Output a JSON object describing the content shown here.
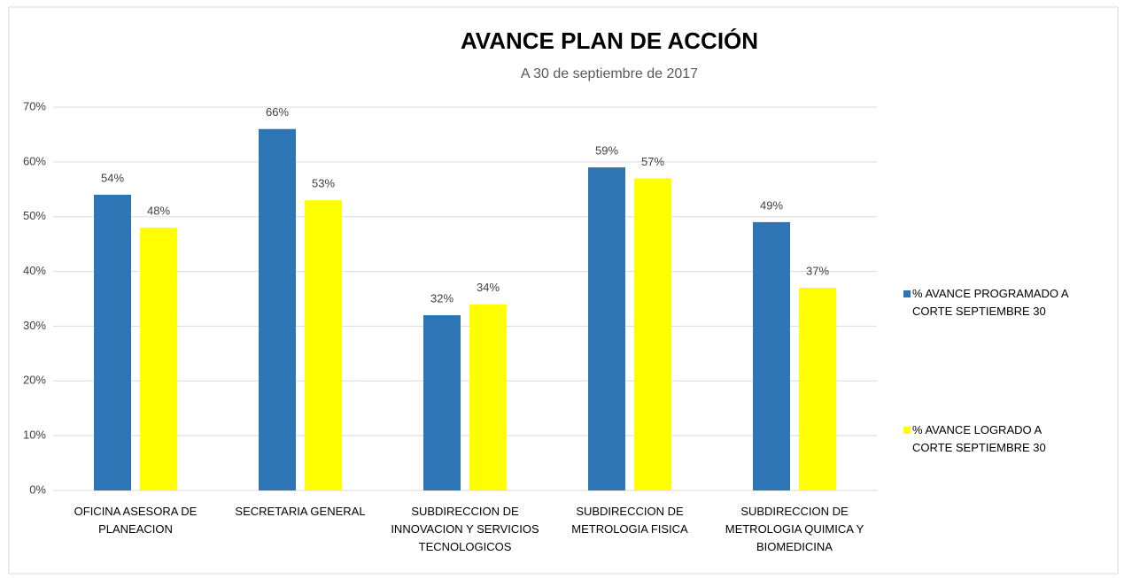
{
  "chart_data": {
    "type": "bar",
    "title": "AVANCE PLAN DE ACCIÓN",
    "subtitle": "A 30 de septiembre de 2017",
    "categories": [
      "OFICINA ASESORA DE PLANEACION",
      "SECRETARIA GENERAL",
      "SUBDIRECCION DE INNOVACION Y SERVICIOS TECNOLOGICOS",
      "SUBDIRECCION DE METROLOGIA FISICA",
      "SUBDIRECCION DE METROLOGIA QUIMICA Y BIOMEDICINA"
    ],
    "series": [
      {
        "name": "% AVANCE PROGRAMADO A CORTE SEPTIEMBRE 30",
        "color": "#2e75b6",
        "values": [
          54,
          66,
          32,
          59,
          49
        ],
        "value_labels": [
          "54%",
          "66%",
          "32%",
          "59%",
          "49%"
        ]
      },
      {
        "name": "% AVANCE LOGRADO A CORTE SEPTIEMBRE 30",
        "color": "#ffff00",
        "values": [
          48,
          53,
          34,
          57,
          37
        ],
        "value_labels": [
          "48%",
          "53%",
          "34%",
          "57%",
          "37%"
        ]
      }
    ],
    "ylim": [
      0,
      70
    ],
    "yticks": [
      {
        "value": 0,
        "label": "0%"
      },
      {
        "value": 10,
        "label": "10%"
      },
      {
        "value": 20,
        "label": "20%"
      },
      {
        "value": 30,
        "label": "30%"
      },
      {
        "value": 40,
        "label": "40%"
      },
      {
        "value": 50,
        "label": "50%"
      },
      {
        "value": 60,
        "label": "60%"
      },
      {
        "value": 70,
        "label": "70%"
      }
    ],
    "grid": true,
    "legend": "right"
  }
}
